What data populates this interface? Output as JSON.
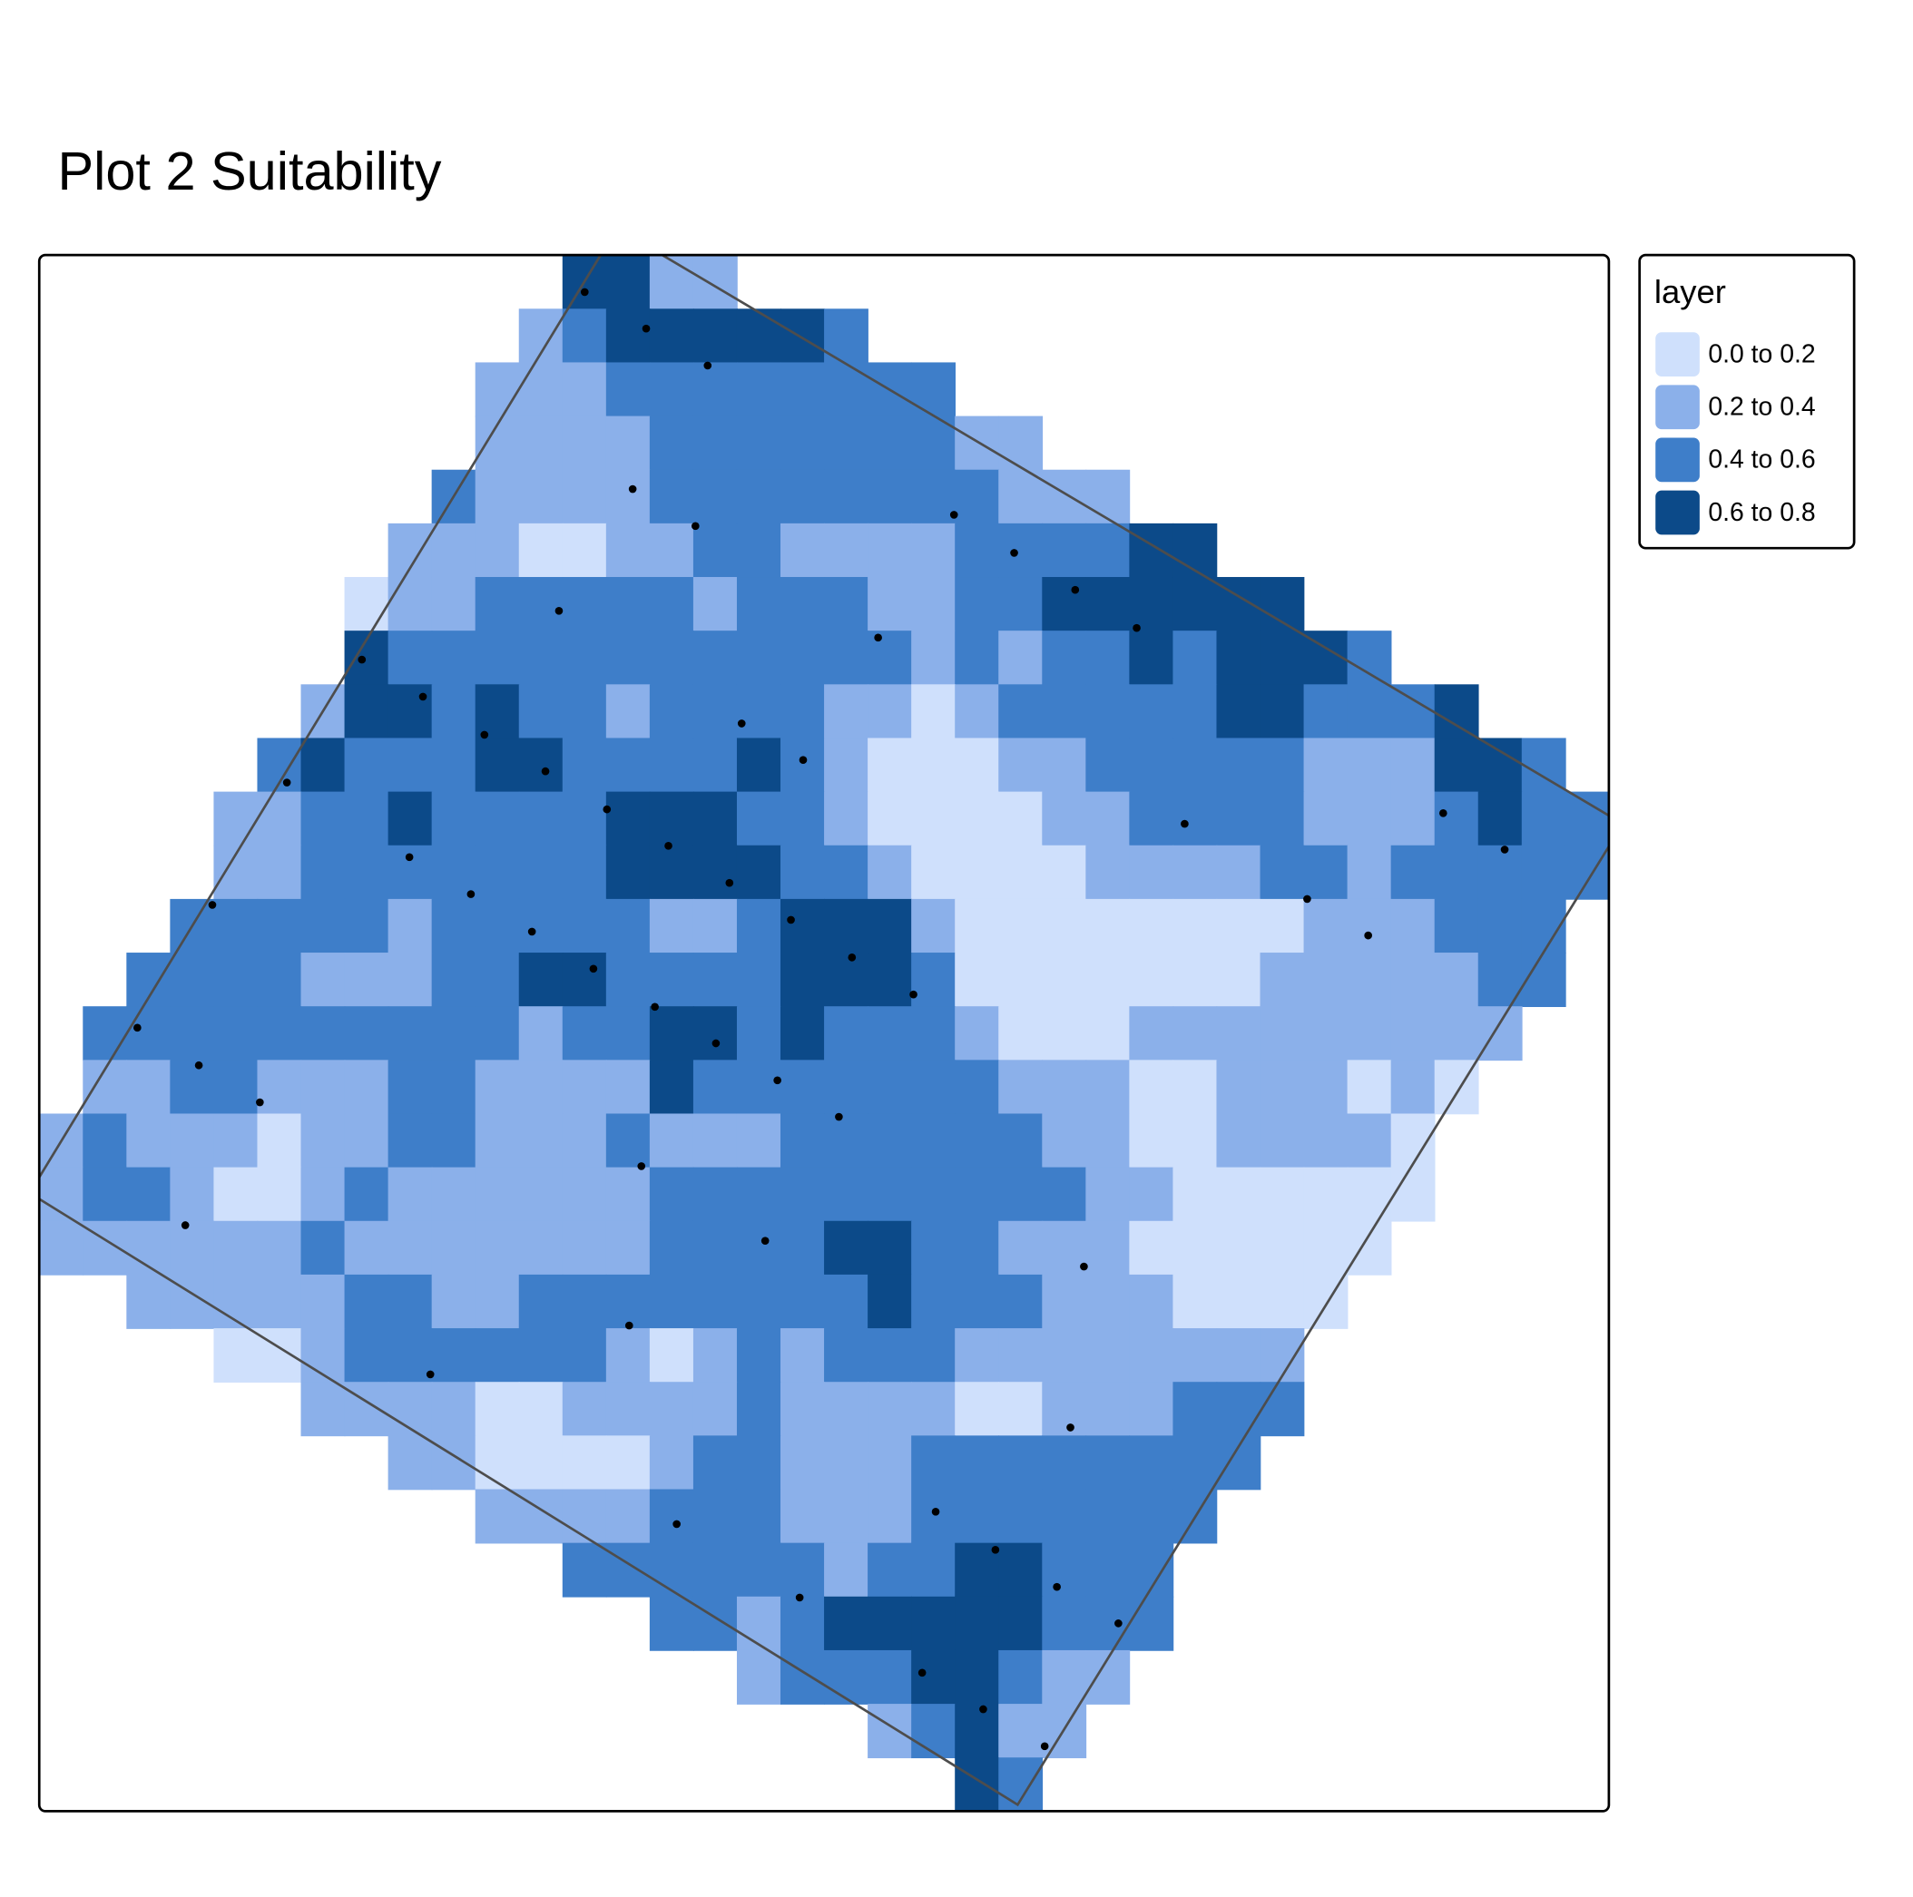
{
  "map": {
    "title": "Plot 2 Suitability",
    "legend": {
      "title": "layer",
      "items": [
        {
          "label": "0.0 to 0.2",
          "color": "#cfe0fc"
        },
        {
          "label": "0.2 to 0.4",
          "color": "#8bb0ea"
        },
        {
          "label": "0.4 to 0.6",
          "color": "#3e7ec9"
        },
        {
          "label": "0.6 to 0.8",
          "color": "#0c4a89"
        }
      ]
    },
    "raster": [
      "000000000000442200000000000000000000",
      "000000000002344444300000000000000000",
      "000000000022233333333000000000000000",
      "000000000022223333333220000000000000",
      "000000000322223333333322200000000000",
      "000000002221122332222333344000000000",
      "000000012233333233322334444440000000",
      "000000043333333333332323343444300000",
      "000000244343323333221233333443334000",
      "000003433344333343211122333332224430",
      "000022334333344433211112233332223433",
      "000022333333344443321111222233233333",
      "000333332333332234442111111112223330",
      "003333222334433334443111111122222330",
      "033333333332334434333211122222222200",
      "022332223322224333333322211222121000",
      "232221223322232223333332211222210000",
      "233211232222223333333333221111110000",
      "222222322222223333443322211111100000",
      "002222233223333333343332221111000000",
      "000011233333321232333222222220000000",
      "000000222211222232222112223330000000",
      "000000002211112332223333333300000000",
      "000000000022223332223333333000000000",
      "000000000000333333233443330000000000",
      "000000000000003323444443330000000000",
      "000000000000000023334432200000000000",
      "000000000000000000023422000000000000",
      "000000000000000000000430000000000000"
    ],
    "points": [
      [
        12.51,
        0.69
      ],
      [
        13.92,
        1.37
      ],
      [
        15.33,
        2.06
      ],
      [
        13.61,
        4.36
      ],
      [
        15.05,
        5.05
      ],
      [
        20.98,
        4.84
      ],
      [
        22.36,
        5.55
      ],
      [
        23.76,
        6.24
      ],
      [
        11.92,
        6.63
      ],
      [
        19.24,
        7.13
      ],
      [
        25.17,
        6.95
      ],
      [
        7.4,
        7.54
      ],
      [
        8.8,
        8.23
      ],
      [
        10.21,
        8.94
      ],
      [
        16.11,
        8.73
      ],
      [
        17.52,
        9.41
      ],
      [
        11.61,
        9.62
      ],
      [
        5.68,
        9.83
      ],
      [
        13.02,
        10.33
      ],
      [
        26.27,
        10.6
      ],
      [
        32.2,
        10.4
      ],
      [
        33.61,
        11.08
      ],
      [
        8.49,
        11.22
      ],
      [
        14.43,
        11.01
      ],
      [
        15.83,
        11.7
      ],
      [
        9.9,
        11.91
      ],
      [
        3.97,
        12.11
      ],
      [
        29.08,
        12.0
      ],
      [
        17.24,
        12.39
      ],
      [
        11.3,
        12.61
      ],
      [
        30.48,
        12.68
      ],
      [
        18.64,
        13.09
      ],
      [
        12.71,
        13.3
      ],
      [
        20.05,
        13.78
      ],
      [
        14.12,
        14.01
      ],
      [
        2.25,
        14.4
      ],
      [
        15.52,
        14.69
      ],
      [
        3.66,
        15.1
      ],
      [
        16.93,
        15.38
      ],
      [
        5.06,
        15.79
      ],
      [
        18.34,
        16.06
      ],
      [
        13.81,
        16.98
      ],
      [
        3.35,
        18.08
      ],
      [
        16.65,
        18.37
      ],
      [
        23.96,
        18.85
      ],
      [
        13.53,
        19.95
      ],
      [
        8.97,
        20.86
      ],
      [
        23.65,
        21.85
      ],
      [
        14.62,
        23.65
      ],
      [
        20.56,
        23.42
      ],
      [
        21.93,
        24.13
      ],
      [
        23.34,
        24.82
      ],
      [
        17.44,
        25.02
      ],
      [
        24.75,
        25.5
      ],
      [
        20.25,
        26.42
      ],
      [
        21.65,
        27.1
      ],
      [
        23.06,
        27.79
      ]
    ],
    "boundary": [
      [
        13.25,
        -0.5
      ],
      [
        36.32,
        10.6
      ],
      [
        22.44,
        28.88
      ],
      [
        -0.22,
        17.48
      ]
    ]
  }
}
